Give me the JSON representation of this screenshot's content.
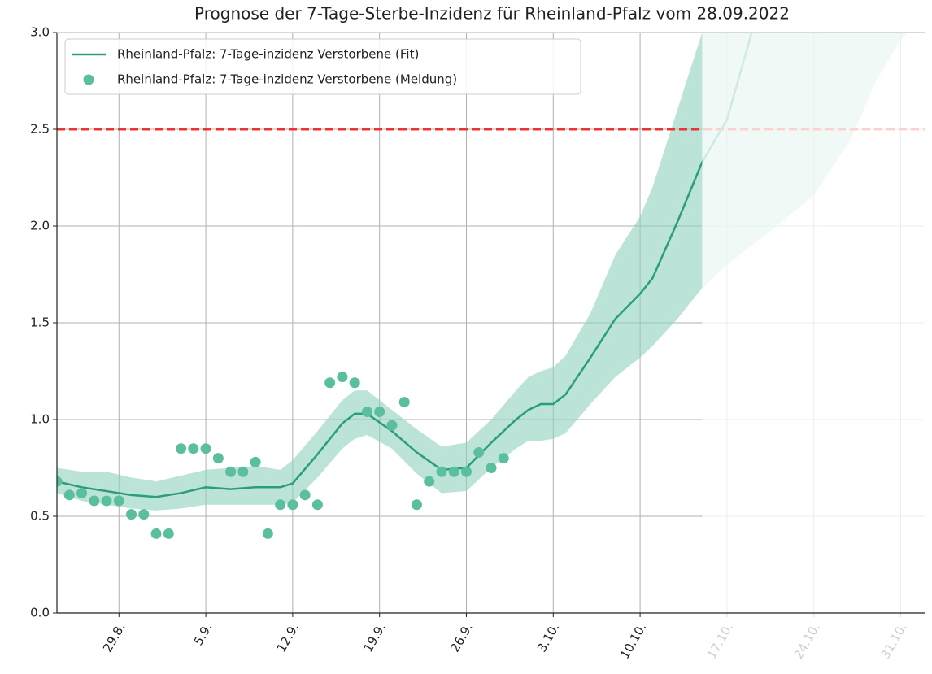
{
  "chart_data": {
    "type": "line",
    "title": "Prognose der 7-Tage-Sterbe-Inzidenz für Rheinland-Pfalz vom 28.09.2022",
    "xlim": [
      "24.8.",
      "2.11."
    ],
    "xticks": [
      "29.8.",
      "5.9.",
      "12.9.",
      "19.9.",
      "26.9.",
      "3.10.",
      "10.10.",
      "17.10.",
      "24.10.",
      "31.10."
    ],
    "ylim": [
      0,
      3
    ],
    "yticks": [
      {
        "value": 0,
        "label": "0.0"
      },
      0.5,
      {
        "value": 1,
        "label": "1.0"
      },
      1.5,
      {
        "value": 2,
        "label": "2.0"
      },
      2.5,
      {
        "value": 3,
        "label": "3.0"
      }
    ],
    "grid": true,
    "legend": "upper left",
    "fade_from": "15.10.",
    "threshold": {
      "value": 2.5,
      "color": "#ee3333"
    },
    "fit": {
      "name": "Rheinland-Pfalz: 7-Tage-inzidenz Verstorbene (Fit)",
      "color": "#2a9d7f",
      "band_color": "#8fd0bc",
      "x": [
        "24.8.",
        "26.8.",
        "28.8.",
        "30.8.",
        "1.9.",
        "3.9.",
        "5.9.",
        "7.9.",
        "9.9.",
        "11.9.",
        "12.9.",
        "14.9.",
        "16.9.",
        "17.9.",
        "18.9.",
        "20.9.",
        "22.9.",
        "24.9.",
        "26.9.",
        "28.9.",
        "30.9.",
        "1.10.",
        "2.10.",
        "3.10.",
        "4.10.",
        "6.10.",
        "8.10.",
        "10.10.",
        "11.10.",
        "13.10.",
        "15.10.",
        "17.10.",
        "19.10.",
        "21.10.",
        "24.10.",
        "27.10.",
        "29.10.",
        "31.10.",
        "2.11."
      ],
      "values": [
        0.68,
        0.65,
        0.63,
        0.61,
        0.6,
        0.62,
        0.65,
        0.64,
        0.65,
        0.65,
        0.67,
        0.82,
        0.98,
        1.03,
        1.03,
        0.94,
        0.83,
        0.74,
        0.75,
        0.88,
        1.0,
        1.05,
        1.08,
        1.08,
        1.13,
        1.32,
        1.52,
        1.65,
        1.73,
        2.02,
        2.33,
        2.55,
        3.0,
        null,
        null,
        null,
        null,
        null,
        null
      ],
      "lower": [
        0.62,
        0.58,
        0.56,
        0.54,
        0.53,
        0.54,
        0.56,
        0.56,
        0.56,
        0.56,
        0.57,
        0.7,
        0.85,
        0.9,
        0.92,
        0.85,
        0.72,
        0.62,
        0.63,
        0.75,
        0.85,
        0.89,
        0.89,
        0.9,
        0.93,
        1.08,
        1.22,
        1.32,
        1.38,
        1.52,
        1.68,
        1.8,
        1.9,
        2.0,
        2.16,
        2.45,
        2.75,
        2.96,
        3.1
      ],
      "upper": [
        0.75,
        0.73,
        0.73,
        0.7,
        0.68,
        0.71,
        0.74,
        0.75,
        0.76,
        0.74,
        0.79,
        0.94,
        1.1,
        1.15,
        1.15,
        1.05,
        0.95,
        0.86,
        0.88,
        1.0,
        1.15,
        1.22,
        1.25,
        1.27,
        1.33,
        1.55,
        1.85,
        2.05,
        2.2,
        2.6,
        3.0,
        3.3,
        3.6,
        3.9,
        4.3,
        4.7,
        5.0,
        5.3,
        5.6
      ]
    },
    "reported": {
      "name": "Rheinland-Pfalz: 7-Tage-inzidenz Verstorbene (Meldung)",
      "color": "#5bbf9f",
      "x": [
        "24.8.",
        "25.8.",
        "26.8.",
        "27.8.",
        "28.8.",
        "29.8.",
        "30.8.",
        "31.8.",
        "1.9.",
        "2.9.",
        "3.9.",
        "4.9.",
        "5.9.",
        "6.9.",
        "7.9.",
        "8.9.",
        "9.9.",
        "10.9.",
        "11.9.",
        "12.9.",
        "13.9.",
        "14.9.",
        "15.9.",
        "16.9.",
        "17.9.",
        "18.9.",
        "19.9.",
        "20.9.",
        "21.9.",
        "22.9.",
        "23.9.",
        "24.9.",
        "25.9.",
        "26.9.",
        "27.9.",
        "28.9.",
        "29.9."
      ],
      "values": [
        0.68,
        0.61,
        0.62,
        0.58,
        0.58,
        0.58,
        0.51,
        0.51,
        0.41,
        0.41,
        0.85,
        0.85,
        0.85,
        0.8,
        0.73,
        0.73,
        0.78,
        0.41,
        0.56,
        0.56,
        0.61,
        0.56,
        1.19,
        1.22,
        1.19,
        1.04,
        1.04,
        0.97,
        1.09,
        0.56,
        0.68,
        0.73,
        0.73,
        0.73,
        0.83,
        0.75,
        0.8
      ]
    }
  }
}
